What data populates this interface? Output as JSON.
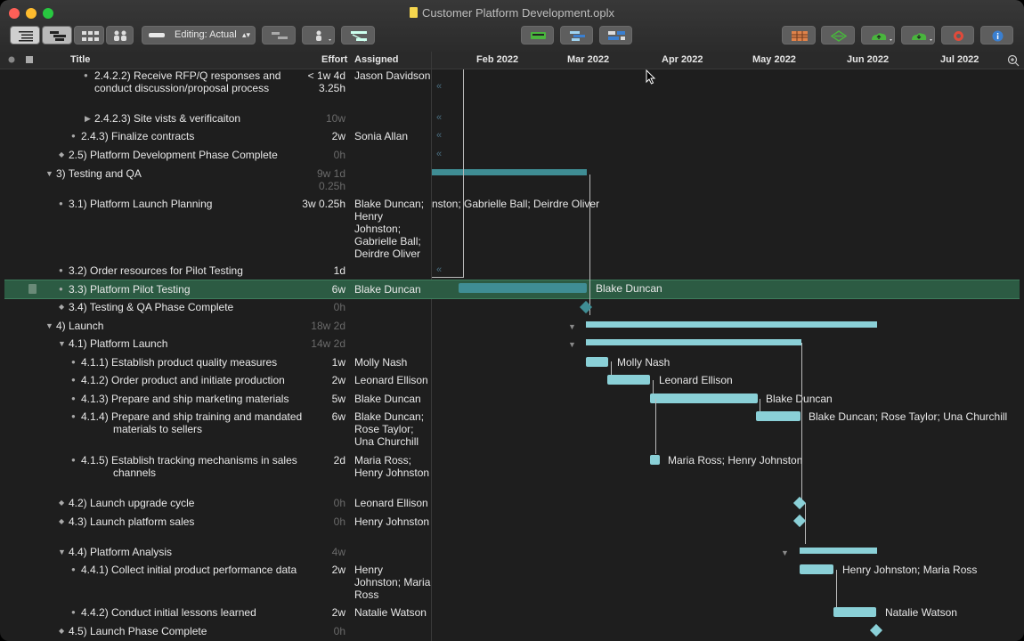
{
  "window": {
    "title": "Customer Platform Development.oplx"
  },
  "toolbar": {
    "editing_label": "Editing: Actual",
    "colors": {
      "green": "#49b53d",
      "blue": "#3a7fd0",
      "red": "#e04a3a",
      "orange": "#e0834a"
    }
  },
  "columns": {
    "title": "Title",
    "effort": "Effort",
    "assigned": "Assigned"
  },
  "timeline": {
    "months": [
      "Feb 2022",
      "Mar 2022",
      "Apr 2022",
      "May 2022",
      "Jun 2022",
      "Jul 2022"
    ]
  },
  "rows": [
    {
      "title": "2.4.2.2)  Receive RFP/Q responses and conduct discussion/proposal process",
      "effort": "< 1w 4d 3.25h",
      "assigned": "Jason Davidson"
    },
    {
      "title": "2.4.2.3)  Site vists & verificaiton",
      "effort": "10w",
      "assigned": ""
    },
    {
      "title": "2.4.3)  Finalize contracts",
      "effort": "2w",
      "assigned": "Sonia Allan"
    },
    {
      "title": "2.5)  Platform Development Phase Complete",
      "effort": "0h",
      "assigned": ""
    },
    {
      "title": "3)  Testing and QA",
      "effort": "9w 1d 0.25h",
      "assigned": ""
    },
    {
      "title": "3.1)  Platform Launch Planning",
      "effort": "3w 0.25h",
      "assigned": "Blake Duncan; Henry Johnston; Gabrielle Ball; Deirdre Oliver"
    },
    {
      "title": "3.2)  Order resources for Pilot Testing",
      "effort": "1d",
      "assigned": ""
    },
    {
      "title": "3.3)  Platform Pilot Testing",
      "effort": "6w",
      "assigned": "Blake Duncan"
    },
    {
      "title": "3.4)  Testing & QA Phase Complete",
      "effort": "0h",
      "assigned": ""
    },
    {
      "title": "4)  Launch",
      "effort": "18w 2d",
      "assigned": ""
    },
    {
      "title": "4.1)  Platform Launch",
      "effort": "14w 2d",
      "assigned": ""
    },
    {
      "title": "4.1.1)  Establish product quality measures",
      "effort": "1w",
      "assigned": "Molly Nash"
    },
    {
      "title": "4.1.2)  Order product and initiate production",
      "effort": "2w",
      "assigned": "Leonard Ellison"
    },
    {
      "title": "4.1.3)  Prepare and ship marketing materials",
      "effort": "5w",
      "assigned": "Blake Duncan"
    },
    {
      "title": "4.1.4)  Prepare and ship training and mandated materials to sellers",
      "effort": "6w",
      "assigned": "Blake Duncan; Rose Taylor; Una Churchill"
    },
    {
      "title": "4.1.5)  Establish tracking mechanisms in sales channels",
      "effort": "2d",
      "assigned": "Maria Ross; Henry Johnston"
    },
    {
      "title": "4.2)  Launch upgrade cycle",
      "effort": "0h",
      "assigned": "Leonard Ellison"
    },
    {
      "title": "4.3)  Launch platform sales",
      "effort": "0h",
      "assigned": "Henry Johnston"
    },
    {
      "title": "4.4)  Platform Analysis",
      "effort": "4w",
      "assigned": ""
    },
    {
      "title": "4.4.1)  Collect initial product performance data",
      "effort": "2w",
      "assigned": "Henry Johnston; Maria Ross"
    },
    {
      "title": "4.4.2)  Conduct initial lessons learned",
      "effort": "2w",
      "assigned": "Natalie Watson"
    },
    {
      "title": "4.5)  Launch Phase Complete",
      "effort": "0h",
      "assigned": ""
    }
  ],
  "gantt_labels": {
    "r5": "nston; Gabrielle Ball; Deirdre Oliver",
    "r7": "Blake Duncan",
    "r11": "Molly Nash",
    "r12": "Leonard Ellison",
    "r13": "Blake Duncan",
    "r14": "Blake Duncan; Rose Taylor; Una Churchill",
    "r15": "Maria Ross; Henry Johnston",
    "r19": "Henry Johnston; Maria Ross",
    "r20": "Natalie Watson"
  }
}
